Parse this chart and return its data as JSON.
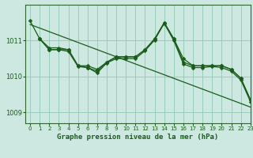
{
  "title": "Graphe pression niveau de la mer (hPa)",
  "background_color": "#cce8e0",
  "grid_color": "#99ccbb",
  "line_color": "#1a5c1a",
  "xlim": [
    -0.5,
    23
  ],
  "ylim": [
    1008.7,
    1012.0
  ],
  "yticks": [
    1009,
    1010,
    1011
  ],
  "xticks": [
    0,
    1,
    2,
    3,
    4,
    5,
    6,
    7,
    8,
    9,
    10,
    11,
    12,
    13,
    14,
    15,
    16,
    17,
    18,
    19,
    20,
    21,
    22,
    23
  ],
  "series1_x": [
    0,
    1,
    2,
    3,
    4,
    5,
    6,
    7,
    8,
    9,
    10,
    11,
    12,
    13,
    14,
    15,
    16,
    17,
    18,
    19,
    20,
    21,
    22,
    23
  ],
  "series1_y": [
    1011.55,
    1011.05,
    1010.8,
    1010.8,
    1010.75,
    1010.3,
    1010.3,
    1010.2,
    1010.4,
    1010.55,
    1010.55,
    1010.55,
    1010.75,
    1011.05,
    1011.5,
    1011.05,
    1010.5,
    1010.3,
    1010.3,
    1010.3,
    1010.3,
    1010.2,
    1009.95,
    1009.35
  ],
  "series2_x": [
    1,
    2,
    3,
    4,
    5,
    6,
    7,
    8,
    9,
    10,
    11,
    12,
    13,
    14,
    15,
    16,
    17,
    18,
    19,
    20,
    21,
    22,
    23
  ],
  "series2_y": [
    1011.05,
    1010.75,
    1010.75,
    1010.75,
    1010.3,
    1010.25,
    1010.15,
    1010.4,
    1010.55,
    1010.55,
    1010.55,
    1010.75,
    1011.05,
    1011.5,
    1011.05,
    1010.4,
    1010.3,
    1010.3,
    1010.3,
    1010.3,
    1010.2,
    1009.95,
    1009.35
  ],
  "series3_x": [
    1,
    2,
    3,
    4,
    5,
    6,
    7,
    8,
    9,
    10,
    11,
    12,
    13,
    14,
    15,
    16,
    17,
    18,
    19,
    20,
    21,
    22,
    23
  ],
  "series3_y": [
    1011.05,
    1010.75,
    1010.75,
    1010.7,
    1010.28,
    1010.25,
    1010.1,
    1010.38,
    1010.5,
    1010.5,
    1010.5,
    1010.72,
    1011.02,
    1011.48,
    1011.0,
    1010.35,
    1010.25,
    1010.25,
    1010.28,
    1010.25,
    1010.15,
    1009.9,
    1009.3
  ],
  "trend_x": [
    0,
    23
  ],
  "trend_y": [
    1011.45,
    1009.15
  ]
}
